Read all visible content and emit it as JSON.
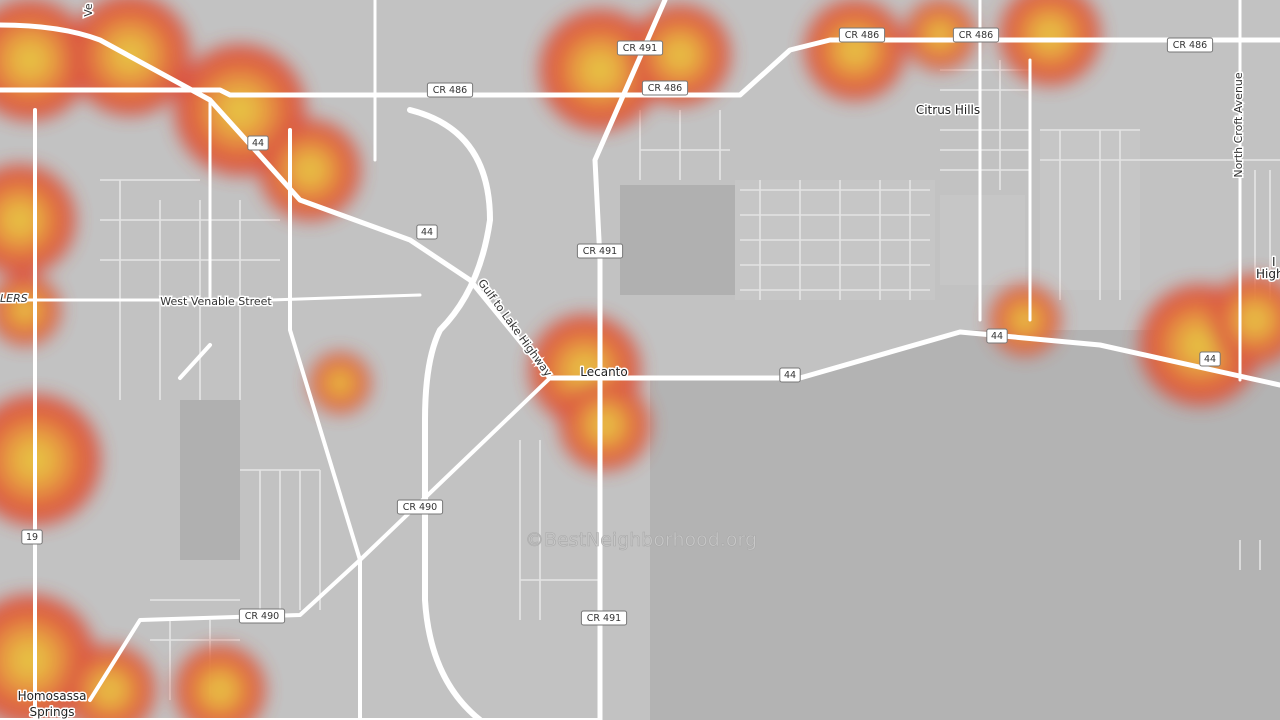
{
  "map": {
    "places": [
      "Citrus Hills",
      "Lecanto",
      "Homosassa",
      "Springs"
    ],
    "streets": [
      "West Venable Street",
      "Gulf to Lake Highway",
      "North Croft Avenue"
    ],
    "shields": [
      "CR 491",
      "CR 486",
      "CR 486",
      "CR 486",
      "CR 486",
      "CR 486",
      "44",
      "44",
      "CR 491",
      "44",
      "44",
      "44",
      "CR 490",
      "CR 491",
      "CR 490",
      "19"
    ],
    "partial_labels": [
      "Ve",
      "LERS",
      "I",
      "High"
    ],
    "watermark": "©BestNeighborhood.org"
  }
}
